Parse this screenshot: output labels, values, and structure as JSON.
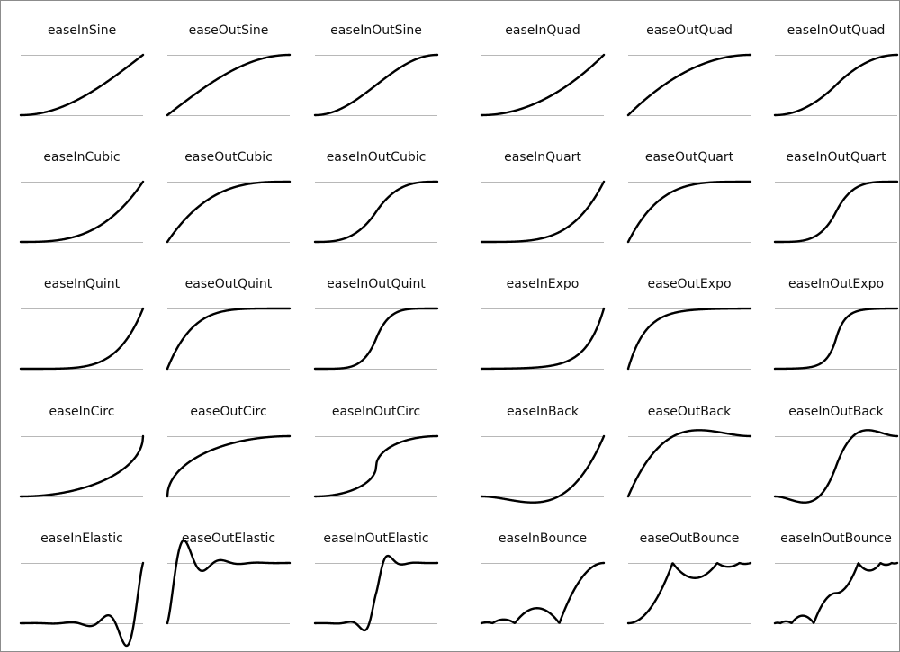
{
  "page": {
    "background": "#ffffff",
    "border_color": "#8c8c8c",
    "guide_color": "#b8b8b8",
    "curve_color": "#000000"
  },
  "curves": [
    {
      "name": "easeInSine"
    },
    {
      "name": "easeOutSine"
    },
    {
      "name": "easeInOutSine"
    },
    {
      "name": "easeInQuad"
    },
    {
      "name": "easeOutQuad"
    },
    {
      "name": "easeInOutQuad"
    },
    {
      "name": "easeInCubic"
    },
    {
      "name": "easeOutCubic"
    },
    {
      "name": "easeInOutCubic"
    },
    {
      "name": "easeInQuart"
    },
    {
      "name": "easeOutQuart"
    },
    {
      "name": "easeInOutQuart"
    },
    {
      "name": "easeInQuint"
    },
    {
      "name": "easeOutQuint"
    },
    {
      "name": "easeInOutQuint"
    },
    {
      "name": "easeInExpo"
    },
    {
      "name": "easeOutExpo"
    },
    {
      "name": "easeInOutExpo"
    },
    {
      "name": "easeInCirc"
    },
    {
      "name": "easeOutCirc"
    },
    {
      "name": "easeInOutCirc"
    },
    {
      "name": "easeInBack"
    },
    {
      "name": "easeOutBack"
    },
    {
      "name": "easeInOutBack"
    },
    {
      "name": "easeInElastic"
    },
    {
      "name": "easeOutElastic"
    },
    {
      "name": "easeInOutElastic"
    },
    {
      "name": "easeInBounce"
    },
    {
      "name": "easeOutBounce"
    },
    {
      "name": "easeInOutBounce"
    }
  ]
}
